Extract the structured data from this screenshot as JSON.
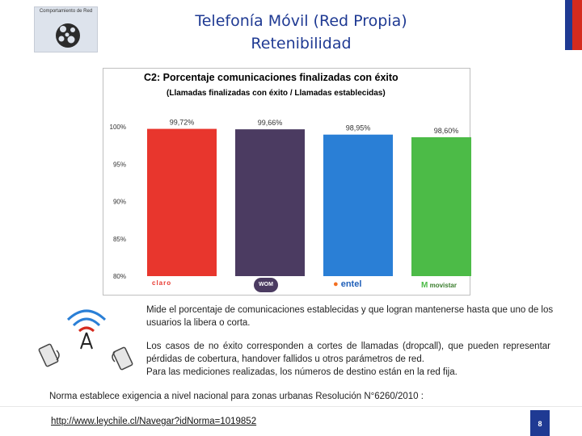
{
  "header": {
    "badge_label": "Comportamiento de Red",
    "title_line1": "Telefonía Móvil (Red Propia)",
    "title_line2": "Retenibilidad",
    "flag_colors": [
      "#1f3a93",
      "#d52b1e"
    ]
  },
  "chart_data": {
    "type": "bar",
    "title": "C2: Porcentaje comunicaciones finalizadas con éxito",
    "subtitle": "(Llamadas finalizadas con éxito / Llamadas establecidas)",
    "categories": [
      "Claro",
      "WOM",
      "entel",
      "movistar"
    ],
    "values": [
      99.72,
      99.66,
      98.95,
      98.6
    ],
    "value_labels": [
      "99,72%",
      "99,66%",
      "98,95%",
      "98,60%"
    ],
    "bar_colors": [
      "#e8362d",
      "#4b3b61",
      "#2a7fd6",
      "#4cbb47"
    ],
    "y_ticks": [
      80,
      85,
      90,
      95,
      100
    ],
    "y_tick_labels": [
      "80%",
      "85%",
      "90%",
      "95%",
      "100%"
    ],
    "ylim": [
      80,
      100
    ],
    "grid": false,
    "legend": "none",
    "brand_labels": {
      "claro": "claro",
      "wom": "WOM",
      "entel": "entel",
      "movistar": "movistar"
    }
  },
  "text": {
    "description": "Mide el porcentaje de comunicaciones establecidas y que logran mantenerse hasta que uno de los usuarios la libera o corta.",
    "failure_causes": "Los casos de no éxito corresponden a cortes de llamadas (dropcall), que pueden representar pérdidas de cobertura, handover fallidos u otros parámetros de red.",
    "measurement_note": "Para las mediciones realizadas, los números de destino están en la red fija.",
    "norma": "Norma establece exigencia a nivel nacional para zonas urbanas Resolución N°6260/2010 :",
    "link": "http://www.leychile.cl/Navegar?idNorma=1019852"
  },
  "footer": {
    "page_number": "8"
  }
}
